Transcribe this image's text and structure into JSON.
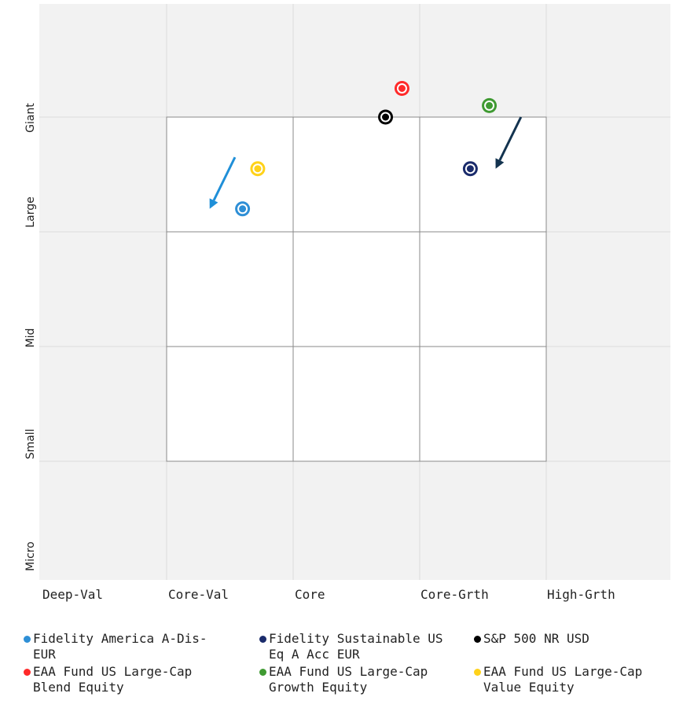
{
  "chart_data": {
    "type": "scatter",
    "title": "",
    "x_labels": [
      "Deep-Val",
      "Core-Val",
      "Core",
      "Core-Grth",
      "High-Grth"
    ],
    "y_labels": [
      "Giant",
      "Large",
      "Mid",
      "Small",
      "Micro"
    ],
    "xlim": [
      -1.5,
      3.5
    ],
    "ylim": [
      -1.5,
      3.5
    ],
    "style_box": {
      "x": [
        0,
        3
      ],
      "y": [
        0,
        3
      ]
    },
    "series": [
      {
        "name": "Fidelity America A-Dis-EUR",
        "color": "#2e8fd6",
        "x": 0.6,
        "y": 2.2
      },
      {
        "name": "Fidelity Sustainable US Eq A Acc EUR",
        "color": "#1a2b6b",
        "x": 2.4,
        "y": 2.55
      },
      {
        "name": "S&P 500 NR USD",
        "color": "#000000",
        "x": 1.73,
        "y": 3.0
      },
      {
        "name": "EAA Fund US Large-Cap Blend Equity",
        "color": "#ff2a2a",
        "x": 1.86,
        "y": 3.25
      },
      {
        "name": "EAA Fund US Large-Cap Growth Equity",
        "color": "#3f9a32",
        "x": 2.55,
        "y": 3.1
      },
      {
        "name": "EAA Fund US Large-Cap Value Equity",
        "color": "#ffd21a",
        "x": 0.72,
        "y": 2.55
      }
    ],
    "arrows": [
      {
        "color": "#1f8fd8",
        "from": [
          0.54,
          2.65
        ],
        "to": [
          0.34,
          2.2
        ]
      },
      {
        "color": "#13334f",
        "from": [
          2.8,
          3.0
        ],
        "to": [
          2.6,
          2.55
        ]
      }
    ],
    "grid": true,
    "legend_position": "bottom"
  }
}
